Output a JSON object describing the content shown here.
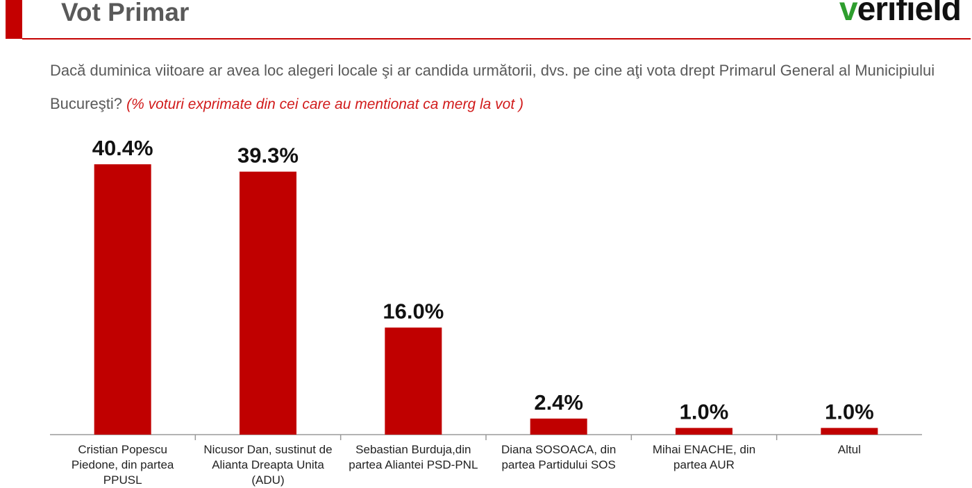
{
  "header": {
    "title": "Vot Primar",
    "logo_text": "verifield",
    "logo_first_letter": "v",
    "logo_rest": "erifield"
  },
  "question": {
    "text": "Dacă duminica viitoare ar avea loc alegeri locale şi ar candida următorii, dvs. pe cine aţi vota drept Primarul General al Municipiului Bucureşti?",
    "note": "(% voturi exprimate din cei care au mentionat ca merg la vot )"
  },
  "colors": {
    "bar": "#c00000",
    "accent": "#c40000",
    "logo_v": "#2e9e2e",
    "note": "#d11b1b"
  },
  "chart_data": {
    "type": "bar",
    "categories": [
      "Cristian Popescu Piedone, din partea PPUSL",
      "Nicusor Dan, sustinut de Alianta Dreapta Unita (ADU)",
      "Sebastian Burduja,din partea Aliantei PSD-PNL",
      "Diana SOSOACA, din partea Partidului SOS",
      "Mihai ENACHE, din partea AUR",
      "Altul"
    ],
    "values": [
      40.4,
      39.3,
      16.0,
      2.4,
      1.0,
      1.0
    ],
    "value_labels": [
      "40.4%",
      "39.3%",
      "16.0%",
      "2.4%",
      "1.0%",
      "1.0%"
    ],
    "title": "",
    "xlabel": "",
    "ylabel": "",
    "ylim": [
      0,
      40.4
    ],
    "grid": false,
    "legend": "none"
  }
}
